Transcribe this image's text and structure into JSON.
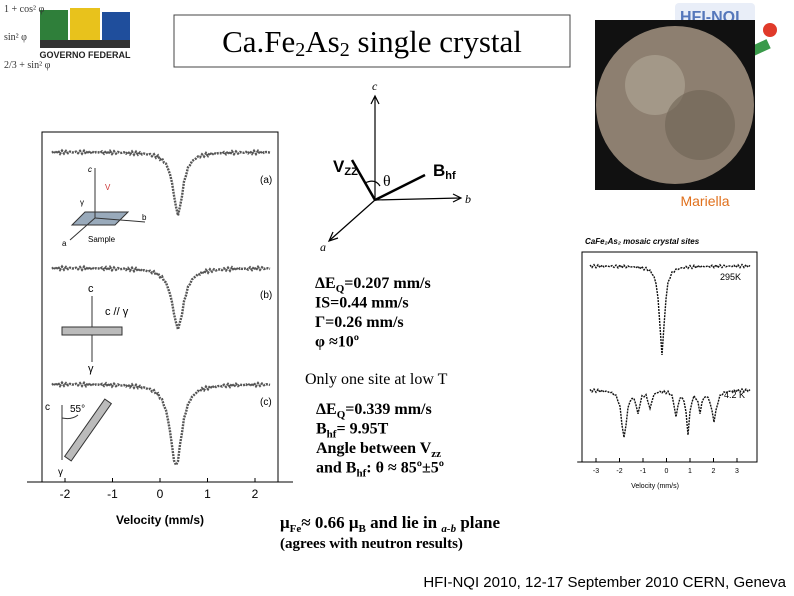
{
  "header": {
    "title": [
      "Ca.Fe",
      "2",
      "As",
      "2",
      " single crystal"
    ],
    "logo_left": [
      "GOVERNO FEDERAL"
    ],
    "formulas": [
      "1 + cos² φ",
      "sin² φ",
      "2/3 + sin² φ"
    ],
    "logo_right": "HFI-NQI"
  },
  "axis_diagram": {
    "c": "c",
    "b": "b",
    "a": "a",
    "vzz": [
      "V",
      "ZZ"
    ],
    "theta": "θ",
    "bhf": [
      "B",
      "hf"
    ]
  },
  "photo": {
    "caption": "Mariella"
  },
  "left_figure": {
    "panels": [
      "(a)",
      "(b)",
      "(c)"
    ],
    "xticks": [
      "-2",
      "-1",
      "0",
      "1",
      "2"
    ],
    "xlabel": "Velocity (mm/s)",
    "inset_a": [
      "c",
      "V",
      "γ",
      "b",
      "a",
      "Sample"
    ],
    "inset_b": [
      "c",
      "c // γ",
      "γ"
    ],
    "inset_c": [
      "c",
      "55°",
      "γ"
    ]
  },
  "right_figure": {
    "title": "CaFe₂As₂ mosaic crystal sites",
    "labels": [
      "295K",
      "4.2 K"
    ],
    "xticks": [
      "-3",
      "-2",
      "-1",
      "0",
      "1",
      "2",
      "3"
    ],
    "xlabel": "Velocity (mm/s)"
  },
  "params_rt": [
    [
      "ΔE",
      "Q",
      "=0.207 mm/s"
    ],
    [
      "IS=0.44 mm/s"
    ],
    [
      "Γ=0.26 mm/s"
    ],
    [
      "φ ≈10º"
    ]
  ],
  "low_t_heading": "Only one site at low T",
  "params_lt": [
    [
      "ΔE",
      "Q",
      "=0.339 mm/s"
    ],
    [
      "B",
      "hf",
      "= 9.95T"
    ],
    [
      "Angle between V",
      "zz",
      ""
    ],
    [
      "and B",
      "hf",
      ":  θ ≈ 85º±5º"
    ]
  ],
  "moment": [
    "μ",
    "Fe",
    "≈ 0.66 μ",
    "B",
    "  and lie in ",
    "a-b",
    " plane"
  ],
  "moment_note": "(agrees with neutron results)",
  "footer": "HFI-NQI 2010, 12-17 September 2010  CERN, Geneva"
}
